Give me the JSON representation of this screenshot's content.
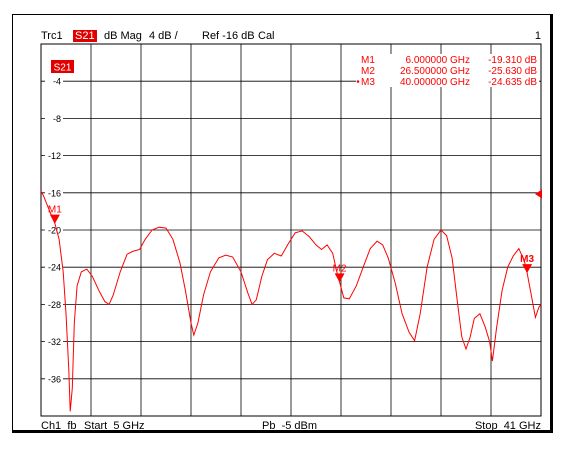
{
  "header": {
    "trace": "Trc1",
    "param": "S21",
    "format": "dB Mag",
    "scale": "4 dB /",
    "ref": "Ref -16 dB",
    "cal": "Cal",
    "channel_num": "1"
  },
  "footer": {
    "channel": "Ch1",
    "fb": "fb",
    "start": "Start  5 GHz",
    "power": "Pb  -5 dBm",
    "stop": "Stop  41 GHz"
  },
  "trace_label": "S21",
  "colors": {
    "trace": "#ff0000",
    "grid": "#000000",
    "badge": "#e00000"
  },
  "chart_data": {
    "type": "line",
    "title": "",
    "xlabel": "",
    "ylabel": "",
    "xlim": [
      5,
      41
    ],
    "ylim": [
      -40,
      0
    ],
    "x_unit": "GHz",
    "y_unit": "dB",
    "grid": true,
    "y_tick_labels": [
      "-4",
      "-8",
      "-12",
      "-16",
      "-20",
      "-24",
      "-28",
      "-32",
      "-36"
    ],
    "y_tick_values": [
      -4,
      -8,
      -12,
      -16,
      -20,
      -24,
      -28,
      -32,
      -36
    ],
    "reference_level": -16,
    "markers": [
      {
        "name": "M1",
        "freq": "6.000000 GHz",
        "value": "-19.310 dB",
        "x": 6.0,
        "y": -19.31,
        "active": false
      },
      {
        "name": "M2",
        "freq": "26.500000 GHz",
        "value": "-25.630 dB",
        "x": 26.5,
        "y": -25.63,
        "active": false
      },
      {
        "name": "M3",
        "freq": "40.000000 GHz",
        "value": "-24.635 dB",
        "x": 40.0,
        "y": -24.635,
        "active": true
      }
    ],
    "series": [
      {
        "values": [
          [
            5.0,
            -15.8
          ],
          [
            5.2,
            -16.4
          ],
          [
            5.5,
            -17.5
          ],
          [
            5.8,
            -18.6
          ],
          [
            6.0,
            -19.3
          ],
          [
            6.3,
            -21.0
          ],
          [
            6.6,
            -24.5
          ],
          [
            6.8,
            -29.0
          ],
          [
            7.0,
            -35.0
          ],
          [
            7.1,
            -39.5
          ],
          [
            7.25,
            -37.0
          ],
          [
            7.4,
            -30.0
          ],
          [
            7.6,
            -26.0
          ],
          [
            7.9,
            -24.5
          ],
          [
            8.3,
            -24.2
          ],
          [
            8.7,
            -25.0
          ],
          [
            9.2,
            -26.6
          ],
          [
            9.6,
            -27.7
          ],
          [
            9.9,
            -28.0
          ],
          [
            10.2,
            -27.0
          ],
          [
            10.7,
            -24.5
          ],
          [
            11.2,
            -22.6
          ],
          [
            11.6,
            -22.3
          ],
          [
            12.1,
            -22.1
          ],
          [
            12.5,
            -21.0
          ],
          [
            13.0,
            -20.0
          ],
          [
            13.5,
            -19.7
          ],
          [
            14.0,
            -19.8
          ],
          [
            14.5,
            -21.0
          ],
          [
            15.0,
            -23.5
          ],
          [
            15.4,
            -26.5
          ],
          [
            15.8,
            -30.0
          ],
          [
            16.0,
            -31.3
          ],
          [
            16.3,
            -30.0
          ],
          [
            16.7,
            -27.0
          ],
          [
            17.2,
            -24.5
          ],
          [
            17.8,
            -23.0
          ],
          [
            18.3,
            -22.7
          ],
          [
            18.8,
            -22.9
          ],
          [
            19.4,
            -24.5
          ],
          [
            19.9,
            -26.8
          ],
          [
            20.2,
            -28.0
          ],
          [
            20.5,
            -27.5
          ],
          [
            20.9,
            -25.0
          ],
          [
            21.3,
            -23.2
          ],
          [
            21.8,
            -22.5
          ],
          [
            22.3,
            -22.8
          ],
          [
            22.8,
            -21.5
          ],
          [
            23.3,
            -20.3
          ],
          [
            23.8,
            -20.1
          ],
          [
            24.3,
            -20.7
          ],
          [
            24.8,
            -21.6
          ],
          [
            25.2,
            -22.1
          ],
          [
            25.6,
            -21.6
          ],
          [
            26.0,
            -22.5
          ],
          [
            26.3,
            -24.5
          ],
          [
            26.5,
            -25.6
          ],
          [
            26.8,
            -27.3
          ],
          [
            27.2,
            -27.4
          ],
          [
            27.7,
            -26.0
          ],
          [
            28.2,
            -24.0
          ],
          [
            28.7,
            -22.0
          ],
          [
            29.2,
            -21.2
          ],
          [
            29.6,
            -21.6
          ],
          [
            30.0,
            -23.0
          ],
          [
            30.5,
            -25.7
          ],
          [
            31.0,
            -29.0
          ],
          [
            31.5,
            -31.0
          ],
          [
            31.9,
            -31.9
          ],
          [
            32.3,
            -29.0
          ],
          [
            32.8,
            -24.0
          ],
          [
            33.3,
            -21.0
          ],
          [
            33.8,
            -20.0
          ],
          [
            34.2,
            -20.6
          ],
          [
            34.6,
            -23.0
          ],
          [
            35.0,
            -28.0
          ],
          [
            35.3,
            -31.5
          ],
          [
            35.6,
            -32.8
          ],
          [
            35.9,
            -31.5
          ],
          [
            36.2,
            -29.5
          ],
          [
            36.6,
            -29.0
          ],
          [
            37.0,
            -30.5
          ],
          [
            37.3,
            -32.0
          ],
          [
            37.5,
            -34.1
          ],
          [
            37.8,
            -30.5
          ],
          [
            38.2,
            -26.5
          ],
          [
            38.6,
            -24.0
          ],
          [
            39.0,
            -22.8
          ],
          [
            39.4,
            -22.0
          ],
          [
            39.8,
            -23.3
          ],
          [
            40.0,
            -24.6
          ],
          [
            40.3,
            -27.0
          ],
          [
            40.6,
            -29.4
          ],
          [
            40.85,
            -28.3
          ],
          [
            41.0,
            -28.0
          ]
        ]
      }
    ]
  }
}
